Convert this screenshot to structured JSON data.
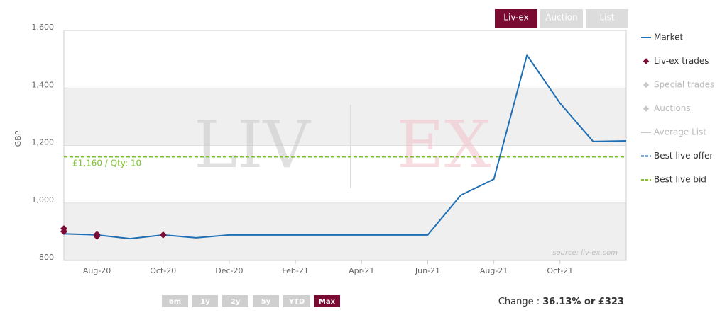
{
  "chart_data": {
    "type": "line",
    "y_label": "GBP",
    "xlim": [
      "2020-07",
      "2021-12"
    ],
    "xticks": [
      {
        "value": "2020-08",
        "label": "Aug-20"
      },
      {
        "value": "2020-10",
        "label": "Oct-20"
      },
      {
        "value": "2020-12",
        "label": "Dec-20"
      },
      {
        "value": "2021-02",
        "label": "Feb-21"
      },
      {
        "value": "2021-04",
        "label": "Apr-21"
      },
      {
        "value": "2021-06",
        "label": "Jun-21"
      },
      {
        "value": "2021-08",
        "label": "Aug-21"
      },
      {
        "value": "2021-10",
        "label": "Oct-21"
      }
    ],
    "ylim": [
      800,
      1600
    ],
    "yticks": [
      800,
      {
        "value": 1000,
        "label": "1,000"
      },
      {
        "value": 1200,
        "label": "1,200"
      },
      {
        "value": 1400,
        "label": "1,400"
      },
      {
        "value": 1600,
        "label": "1,600"
      }
    ],
    "series": [
      {
        "name": "Market",
        "color": "#1f6fb5",
        "style": "line",
        "x": [
          "2020-07",
          "2020-08",
          "2020-09",
          "2020-10",
          "2020-11",
          "2020-12",
          "2021-01",
          "2021-02",
          "2021-03",
          "2021-04",
          "2021-05",
          "2021-06",
          "2021-07",
          "2021-08",
          "2021-09",
          "2021-10",
          "2021-11",
          "2021-12"
        ],
        "values": [
          893,
          889,
          876,
          889,
          879,
          889,
          889,
          889,
          889,
          889,
          889,
          889,
          1027,
          1083,
          1514,
          1347,
          1214,
          1216
        ]
      },
      {
        "name": "Liv-ex trades",
        "color": "#7b0c36",
        "style": "marker",
        "x": [
          "2020-07",
          "2020-07",
          "2020-07",
          "2020-08",
          "2020-08",
          "2020-10"
        ],
        "values": [
          911,
          901,
          901,
          891,
          884,
          889
        ]
      },
      {
        "name": "Special trades",
        "color": "#c8c8c8",
        "style": "marker",
        "enabled": false
      },
      {
        "name": "Auctions",
        "color": "#c8c8c8",
        "style": "marker",
        "enabled": false
      },
      {
        "name": "Average List",
        "color": "#c8c8c8",
        "style": "line",
        "enabled": false
      },
      {
        "name": "Best live offer",
        "color": "#1f5ea8",
        "style": "dashed"
      },
      {
        "name": "Best live bid",
        "color": "#7dc42d",
        "style": "dashed",
        "value": 1160,
        "value_label": "£1,160 / Qty: 10"
      }
    ],
    "watermark": [
      "LIV",
      "EX"
    ],
    "source": "source: liv-ex.com",
    "tabs": [
      "Liv-ex",
      "Auction",
      "List"
    ],
    "active_tab": 0,
    "range_buttons": [
      "6m",
      "1y",
      "2y",
      "5y",
      "YTD",
      "Max"
    ],
    "active_range": 5,
    "change": {
      "label": "Change :",
      "value": "36.13% or £323"
    }
  }
}
